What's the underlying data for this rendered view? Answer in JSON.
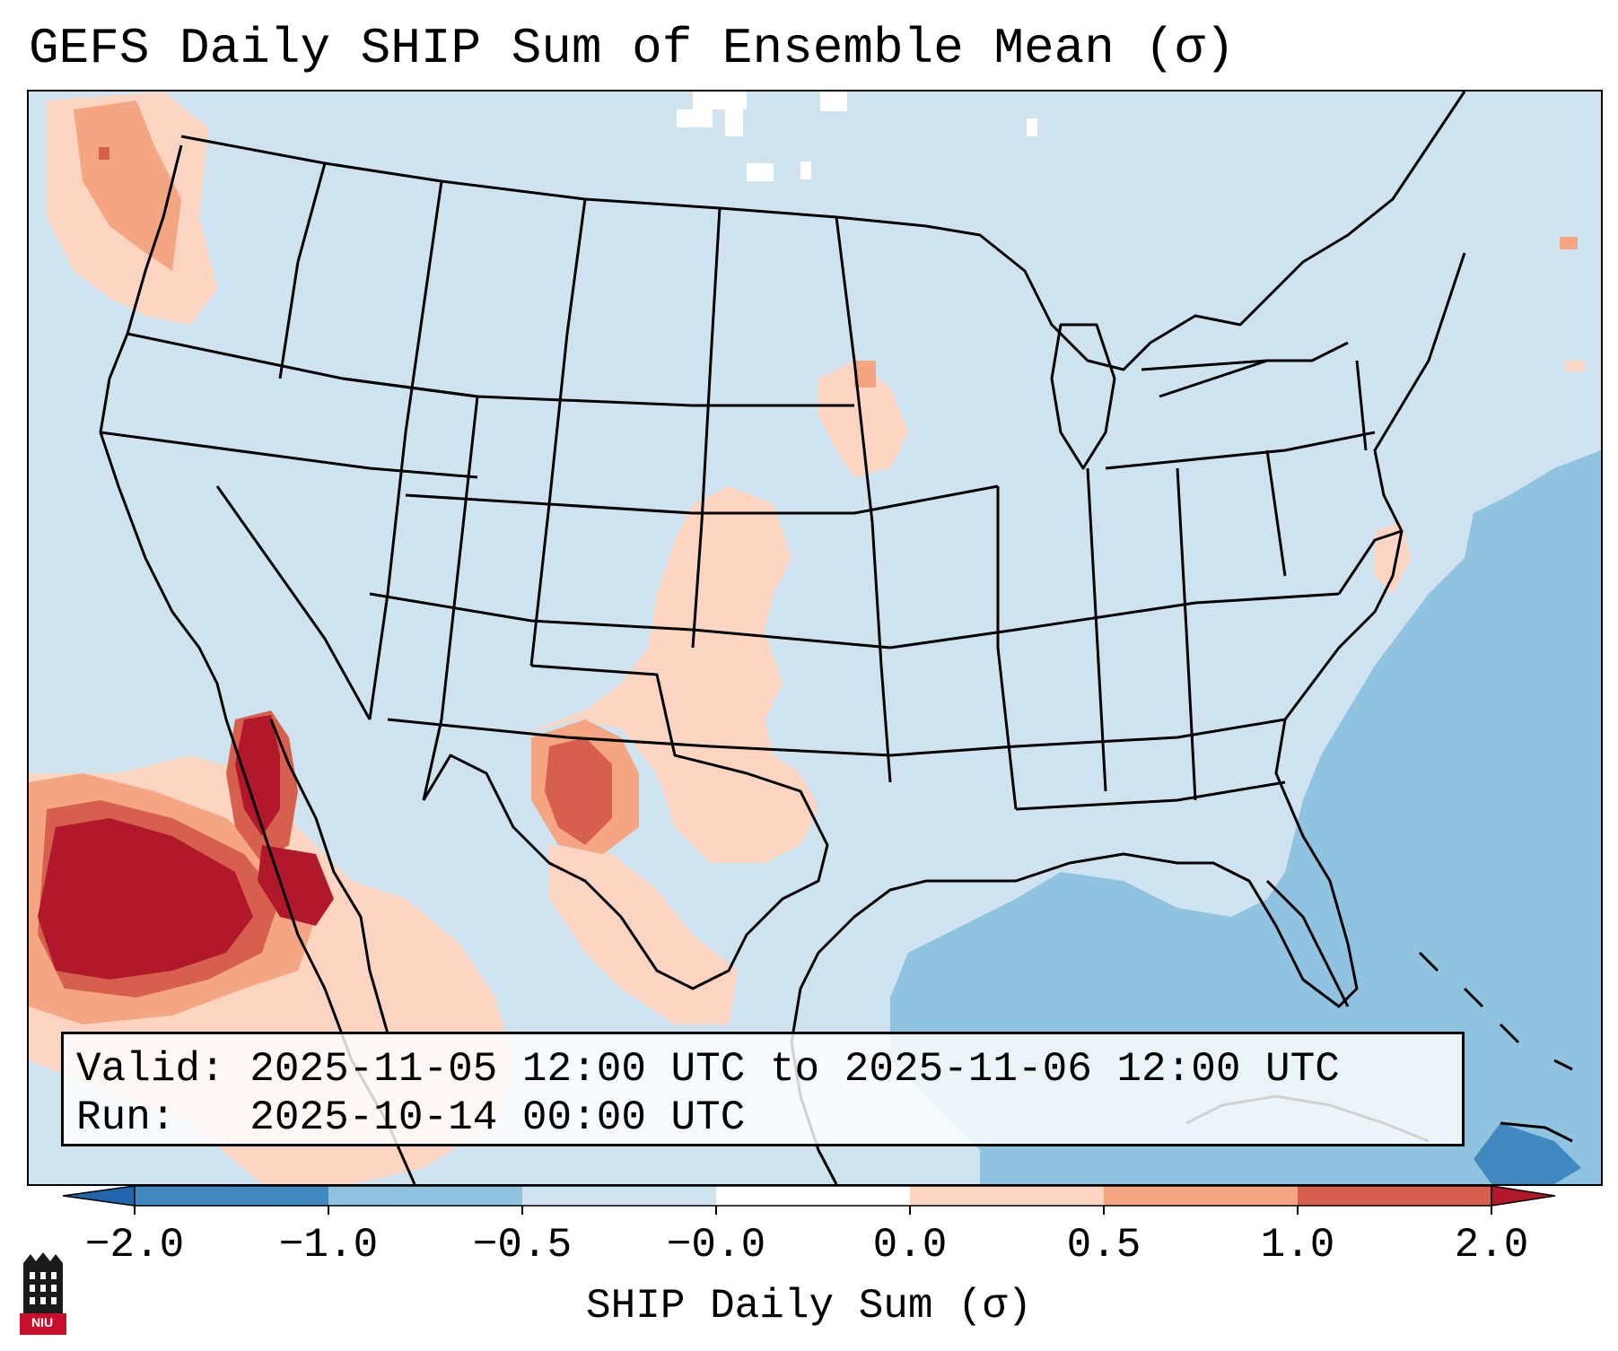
{
  "title": "GEFS Daily SHIP Sum of Ensemble Mean (σ)",
  "info": {
    "valid_label": "Valid:",
    "valid_value": "2025-11-05 12:00 UTC to 2025-11-06 12:00 UTC",
    "run_label": "Run:",
    "run_value": "2025-10-14 00:00 UTC"
  },
  "colorbar": {
    "label": "SHIP Daily Sum (σ)",
    "ticks": [
      "−2.0",
      "−1.0",
      "−0.5",
      "−0.0",
      "0.0",
      "0.5",
      "1.0",
      "2.0"
    ],
    "bin_colors": [
      "#3f89c0",
      "#8fc3df",
      "#cfe2ef",
      "#fbd5c1",
      "#f4a582",
      "#d6604d",
      "#b2182b"
    ],
    "extend_low_color": "#2166ac",
    "extend_high_color": "#b2182b"
  },
  "logo": {
    "text": "NIU",
    "icon": "niu-logo-icon"
  },
  "map": {
    "projection": "Lambert conformal CONUS",
    "background_color": "#cfe2ef",
    "ocean_anomaly_color": "#8fc3df"
  }
}
